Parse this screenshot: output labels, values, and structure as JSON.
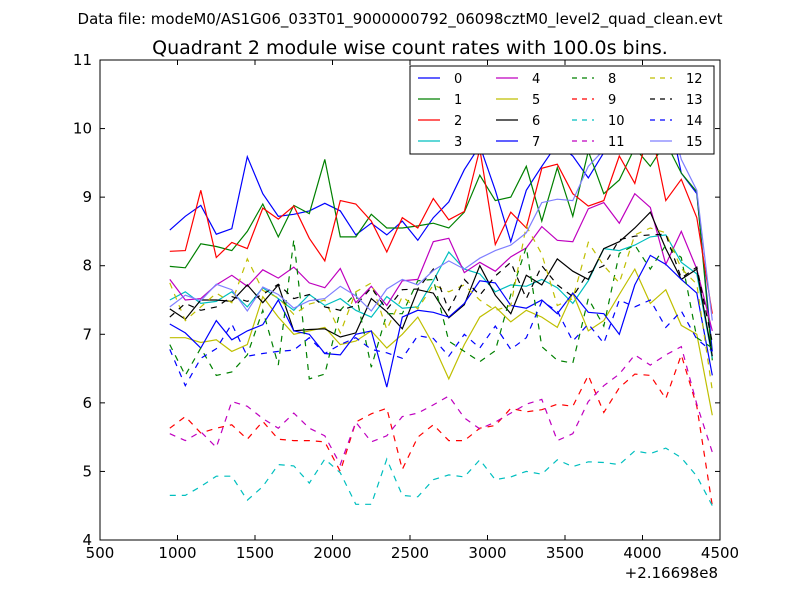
{
  "header": {
    "file_label": "Data file: modeM0/AS1G06_033T01_9000000792_06098cztM0_level2_quad_clean.evt"
  },
  "chart_data": {
    "type": "line",
    "title": "Quadrant 2 module wise count rates with 100.0s bins.",
    "xlabel": "",
    "ylabel": "",
    "x_offset_label": "+2.16698e8",
    "xlim": [
      500,
      4500
    ],
    "ylim": [
      4,
      11
    ],
    "x_ticks": [
      "500",
      "1000",
      "1500",
      "2000",
      "2500",
      "3000",
      "3500",
      "4000",
      "4500"
    ],
    "y_ticks": [
      "4",
      "5",
      "6",
      "7",
      "8",
      "9",
      "10",
      "11"
    ],
    "grid": false,
    "legend_position": "top-right",
    "x": [
      950,
      1050,
      1150,
      1250,
      1350,
      1450,
      1550,
      1650,
      1750,
      1850,
      1950,
      2050,
      2150,
      2250,
      2350,
      2450,
      2550,
      2650,
      2750,
      2850,
      2950,
      3050,
      3150,
      3250,
      3350,
      3450,
      3550,
      3650,
      3750,
      3850,
      3950,
      4050,
      4150,
      4250,
      4350,
      4450
    ],
    "series": [
      {
        "name": "0",
        "color": "#0000ff",
        "dash": "solid",
        "values": [
          8.52,
          8.72,
          8.88,
          8.46,
          8.54,
          9.59,
          9.05,
          8.72,
          8.75,
          8.8,
          8.91,
          8.8,
          8.45,
          8.62,
          8.45,
          8.65,
          8.37,
          8.7,
          8.93,
          9.4,
          9.75,
          9.1,
          8.35,
          9.1,
          9.45,
          9.78,
          9.6,
          9.28,
          9.65,
          9.92,
          10.3,
          10.05,
          10.42,
          9.35,
          9.05,
          6.75
        ]
      },
      {
        "name": "1",
        "color": "#008000",
        "dash": "solid",
        "values": [
          7.99,
          7.97,
          8.32,
          8.28,
          8.22,
          8.5,
          8.9,
          8.42,
          8.88,
          8.76,
          9.55,
          8.42,
          8.42,
          8.75,
          8.55,
          8.55,
          8.58,
          8.62,
          8.55,
          8.78,
          9.32,
          8.95,
          9.0,
          9.45,
          8.65,
          9.43,
          8.72,
          9.67,
          9.05,
          9.25,
          9.72,
          9.45,
          9.8,
          9.35,
          9.08,
          6.62
        ]
      },
      {
        "name": "2",
        "color": "#ff0000",
        "dash": "solid",
        "values": [
          8.21,
          8.22,
          9.1,
          8.12,
          8.34,
          8.25,
          8.84,
          8.68,
          8.87,
          8.4,
          8.07,
          8.95,
          8.9,
          8.65,
          8.2,
          8.7,
          8.55,
          8.98,
          8.67,
          8.79,
          9.7,
          8.31,
          8.78,
          8.55,
          9.42,
          9.48,
          9.05,
          8.87,
          8.95,
          9.6,
          9.2,
          10.05,
          8.95,
          9.26,
          8.7,
          7.3
        ]
      },
      {
        "name": "3",
        "color": "#00bfbf",
        "dash": "solid",
        "values": [
          7.5,
          7.62,
          7.45,
          7.48,
          7.62,
          7.4,
          7.68,
          7.52,
          7.35,
          7.58,
          7.42,
          7.52,
          7.35,
          7.25,
          7.55,
          7.38,
          7.4,
          7.78,
          8.2,
          7.95,
          7.88,
          7.62,
          7.72,
          7.7,
          7.8,
          7.68,
          7.45,
          7.78,
          8.25,
          8.22,
          8.3,
          8.42,
          8.45,
          8.05,
          7.88,
          6.65
        ]
      },
      {
        "name": "4",
        "color": "#bf00bf",
        "dash": "solid",
        "values": [
          7.8,
          7.5,
          7.52,
          7.72,
          7.86,
          7.7,
          7.94,
          7.82,
          7.98,
          7.75,
          7.68,
          7.96,
          7.46,
          7.7,
          7.42,
          7.78,
          7.8,
          8.35,
          8.4,
          7.9,
          8.05,
          7.92,
          8.13,
          8.26,
          8.57,
          8.37,
          8.35,
          8.83,
          8.92,
          8.62,
          9.05,
          8.85,
          8.02,
          8.5,
          7.95,
          7.05
        ]
      },
      {
        "name": "5",
        "color": "#bfbf00",
        "dash": "solid",
        "values": [
          6.95,
          6.95,
          6.88,
          6.92,
          6.75,
          6.85,
          7.55,
          7.25,
          7.0,
          7.05,
          7.1,
          6.85,
          6.9,
          7.05,
          6.8,
          7.0,
          7.25,
          6.85,
          6.35,
          6.85,
          7.25,
          7.4,
          7.18,
          7.35,
          7.25,
          7.1,
          7.6,
          7.05,
          7.2,
          7.58,
          7.95,
          7.45,
          7.65,
          7.13,
          7.0,
          5.82
        ]
      },
      {
        "name": "6",
        "color": "#000000",
        "dash": "solid",
        "values": [
          7.37,
          7.22,
          7.5,
          7.5,
          7.48,
          7.72,
          7.46,
          7.72,
          7.05,
          7.07,
          7.08,
          6.96,
          7.02,
          7.52,
          7.33,
          7.08,
          7.65,
          7.6,
          7.24,
          7.43,
          8.0,
          7.57,
          7.3,
          7.86,
          7.72,
          8.1,
          7.92,
          7.8,
          8.25,
          8.35,
          8.55,
          8.78,
          8.25,
          7.8,
          7.95,
          6.68
        ]
      },
      {
        "name": "7",
        "color": "#0000ff",
        "dash": "solid",
        "values": [
          7.15,
          7.02,
          6.8,
          7.2,
          6.92,
          7.05,
          7.14,
          7.5,
          7.05,
          7.0,
          6.72,
          6.7,
          7.0,
          7.05,
          6.23,
          7.25,
          7.35,
          7.32,
          7.25,
          7.45,
          7.78,
          7.75,
          7.42,
          7.38,
          7.5,
          7.3,
          7.6,
          7.32,
          7.3,
          7.0,
          7.72,
          8.15,
          8.02,
          7.8,
          7.6,
          6.4
        ]
      },
      {
        "name": "8",
        "color": "#008000",
        "dash": "dashed",
        "values": [
          6.85,
          6.4,
          6.8,
          6.4,
          6.45,
          6.7,
          7.35,
          6.55,
          8.38,
          6.35,
          6.42,
          7.35,
          7.6,
          6.52,
          7.3,
          7.3,
          7.78,
          7.8,
          6.9,
          6.75,
          6.6,
          6.76,
          7.58,
          8.27,
          6.82,
          6.62,
          6.58,
          7.52,
          7.12,
          8.18,
          8.3,
          7.95,
          8.3,
          8.12,
          6.95,
          6.8
        ]
      },
      {
        "name": "9",
        "color": "#ff0000",
        "dash": "dashed",
        "values": [
          5.63,
          5.8,
          5.56,
          5.63,
          5.68,
          5.47,
          5.73,
          5.47,
          5.45,
          5.45,
          5.43,
          5.0,
          5.72,
          5.84,
          5.92,
          5.03,
          5.5,
          5.68,
          5.45,
          5.45,
          5.63,
          5.67,
          5.92,
          5.87,
          5.9,
          5.98,
          5.95,
          6.4,
          5.86,
          6.22,
          6.42,
          6.4,
          6.06,
          6.7,
          5.95,
          4.5
        ]
      },
      {
        "name": "10",
        "color": "#00bfbf",
        "dash": "dashed",
        "values": [
          4.65,
          4.65,
          4.78,
          4.93,
          4.93,
          4.58,
          4.78,
          5.1,
          5.08,
          4.83,
          5.18,
          4.98,
          4.52,
          4.52,
          5.18,
          4.65,
          4.63,
          4.88,
          4.95,
          4.92,
          5.17,
          4.88,
          4.92,
          5.0,
          4.96,
          5.17,
          5.07,
          5.14,
          5.13,
          5.1,
          5.3,
          5.26,
          5.34,
          5.2,
          4.93,
          4.5
        ]
      },
      {
        "name": "11",
        "color": "#bf00bf",
        "dash": "dashed",
        "values": [
          5.55,
          5.45,
          5.58,
          5.35,
          6.02,
          5.95,
          5.77,
          5.63,
          5.85,
          5.63,
          5.52,
          5.1,
          5.72,
          5.43,
          5.52,
          5.8,
          5.85,
          5.97,
          6.1,
          5.78,
          5.62,
          5.72,
          5.85,
          5.98,
          6.05,
          5.45,
          5.55,
          6.02,
          6.25,
          6.42,
          6.7,
          6.55,
          6.7,
          6.82,
          5.98,
          5.28
        ]
      },
      {
        "name": "12",
        "color": "#bfbf00",
        "dash": "dashed",
        "values": [
          7.75,
          7.2,
          7.4,
          7.6,
          7.46,
          8.1,
          7.64,
          7.53,
          7.29,
          7.44,
          7.5,
          7.02,
          7.62,
          7.75,
          7.07,
          7.55,
          7.37,
          7.72,
          7.62,
          7.72,
          7.5,
          7.35,
          7.42,
          8.58,
          8.17,
          7.42,
          7.52,
          8.34,
          8.0,
          7.75,
          8.45,
          8.55,
          8.48,
          7.96,
          7.73,
          6.18
        ]
      },
      {
        "name": "13",
        "color": "#000000",
        "dash": "dashed",
        "values": [
          7.25,
          7.45,
          7.35,
          7.4,
          7.55,
          7.48,
          7.58,
          7.73,
          7.52,
          7.58,
          7.4,
          7.35,
          7.42,
          7.68,
          7.36,
          7.65,
          7.66,
          7.95,
          7.35,
          7.8,
          7.57,
          7.85,
          8.05,
          7.52,
          8.0,
          7.72,
          7.55,
          7.9,
          8.0,
          8.38,
          8.43,
          8.45,
          8.46,
          7.82,
          7.98,
          6.88
        ]
      },
      {
        "name": "14",
        "color": "#0000ff",
        "dash": "dashed",
        "values": [
          6.78,
          6.25,
          6.65,
          6.79,
          7.15,
          6.68,
          6.72,
          6.75,
          6.77,
          6.95,
          6.72,
          6.85,
          6.95,
          6.78,
          6.73,
          6.65,
          6.98,
          6.94,
          6.68,
          7.0,
          6.8,
          7.12,
          6.78,
          6.95,
          7.48,
          7.34,
          6.9,
          7.15,
          6.87,
          7.5,
          7.4,
          7.5,
          7.1,
          7.34,
          6.93,
          6.75
        ]
      },
      {
        "name": "15",
        "color": "#7f7fff",
        "dash": "solid",
        "values": [
          7.4,
          7.57,
          7.49,
          7.73,
          7.65,
          7.34,
          7.69,
          7.58,
          7.38,
          7.49,
          7.52,
          7.7,
          7.56,
          7.34,
          7.66,
          7.8,
          7.72,
          7.93,
          8.07,
          7.95,
          8.11,
          8.22,
          8.3,
          8.48,
          8.92,
          8.97,
          8.95,
          9.45,
          9.69,
          9.86,
          10.28,
          10.1,
          10.4,
          9.55,
          9.1,
          7.2
        ]
      }
    ]
  }
}
